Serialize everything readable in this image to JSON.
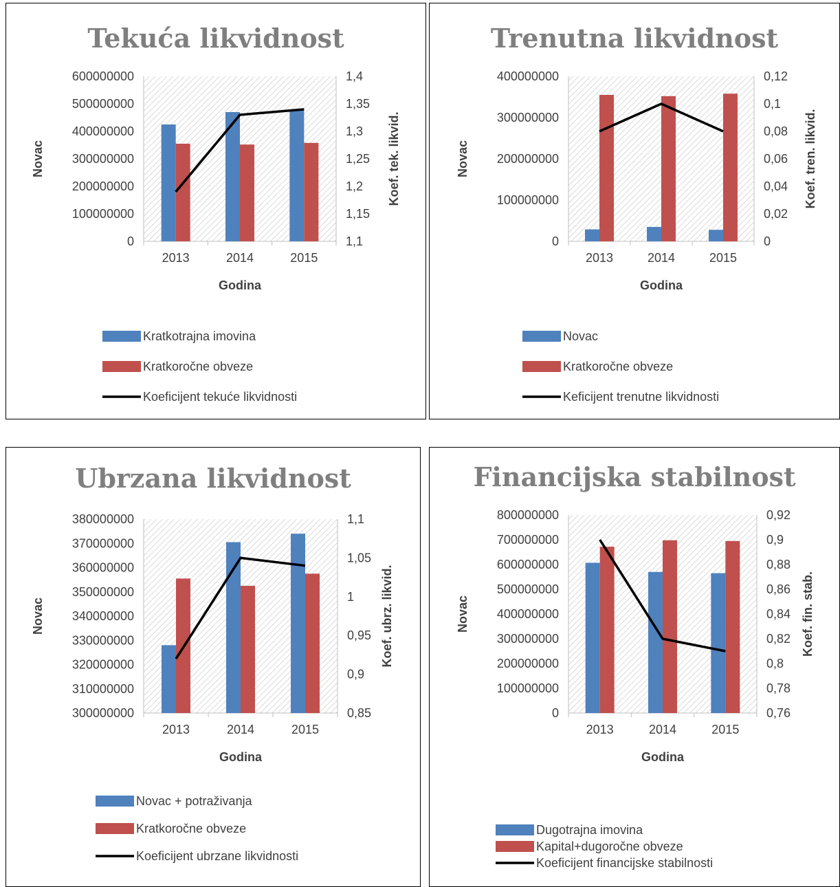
{
  "chart_data": [
    {
      "type": "bar",
      "title": "Tekuća likvidnost",
      "xlabel": "Godina",
      "ylabel": "Novac",
      "y2label": "Koef. tek. likvid.",
      "categories": [
        "2013",
        "2014",
        "2015"
      ],
      "ylim": [
        0,
        600000000
      ],
      "yticks": [
        "0",
        "100000000",
        "200000000",
        "300000000",
        "400000000",
        "500000000",
        "600000000"
      ],
      "y2lim": [
        1.1,
        1.4
      ],
      "y2ticks": [
        "1,1",
        "1,15",
        "1,2",
        "1,25",
        "1,3",
        "1,35",
        "1,4"
      ],
      "series": [
        {
          "name": "Kratkotrajna imovina",
          "kind": "bar",
          "color": "#4f81bd",
          "values": [
            425000000,
            470000000,
            480000000
          ]
        },
        {
          "name": "Kratkoročne obveze",
          "kind": "bar",
          "color": "#c0504d",
          "values": [
            355000000,
            352000000,
            358000000
          ]
        },
        {
          "name": "Koeficijent tekuće likvidnosti",
          "kind": "line",
          "axis": "right",
          "color": "#000000",
          "values": [
            1.19,
            1.33,
            1.34
          ]
        }
      ],
      "legend_position": "bottom",
      "grid": "hatched-plot-area"
    },
    {
      "type": "bar",
      "title": "Trenutna likvidnost",
      "xlabel": "Godina",
      "ylabel": "Novac",
      "y2label": "Koef. tren. likvid.",
      "categories": [
        "2013",
        "2014",
        "2015"
      ],
      "ylim": [
        0,
        400000000
      ],
      "yticks": [
        "0",
        "100000000",
        "200000000",
        "300000000",
        "400000000"
      ],
      "y2lim": [
        0,
        0.12
      ],
      "y2ticks": [
        "0",
        "0,02",
        "0,04",
        "0,06",
        "0,08",
        "0,1",
        "0,12"
      ],
      "series": [
        {
          "name": "Novac",
          "kind": "bar",
          "color": "#4f81bd",
          "values": [
            29000000,
            35000000,
            28000000
          ]
        },
        {
          "name": "Kratkoročne obveze",
          "kind": "bar",
          "color": "#c0504d",
          "values": [
            355000000,
            352000000,
            358000000
          ]
        },
        {
          "name": "Keficijent trenutne likvidnosti",
          "kind": "line",
          "axis": "right",
          "color": "#000000",
          "values": [
            0.08,
            0.1,
            0.08
          ]
        }
      ],
      "legend_position": "bottom",
      "grid": "hatched-plot-area"
    },
    {
      "type": "bar",
      "title": "Ubrzana likvidnost",
      "xlabel": "Godina",
      "ylabel": "Novac",
      "y2label": "Koef. ubrz. likvid.",
      "categories": [
        "2013",
        "2014",
        "2015"
      ],
      "ylim": [
        300000000,
        380000000
      ],
      "yticks": [
        "300000000",
        "310000000",
        "320000000",
        "330000000",
        "340000000",
        "350000000",
        "360000000",
        "370000000",
        "380000000"
      ],
      "y2lim": [
        0.85,
        1.1
      ],
      "y2ticks": [
        "0,85",
        "0,9",
        "0,95",
        "1",
        "1,05",
        "1,1"
      ],
      "series": [
        {
          "name": "Novac + potraživanja",
          "kind": "bar",
          "color": "#4f81bd",
          "values": [
            328000000,
            370500000,
            374000000
          ]
        },
        {
          "name": "Kratkoročne obveze",
          "kind": "bar",
          "color": "#c0504d",
          "values": [
            355500000,
            352500000,
            357500000
          ]
        },
        {
          "name": "Koeficijent ubrzane likvidnosti",
          "kind": "line",
          "axis": "right",
          "color": "#000000",
          "values": [
            0.92,
            1.05,
            1.04
          ]
        }
      ],
      "legend_position": "bottom",
      "grid": "hatched-plot-area"
    },
    {
      "type": "bar",
      "title": "Financijska stabilnost",
      "xlabel": "Godina",
      "ylabel": "Novac",
      "y2label": "Koef. fin. stab.",
      "categories": [
        "2013",
        "2014",
        "2015"
      ],
      "ylim": [
        0,
        800000000
      ],
      "yticks": [
        "0",
        "100000000",
        "200000000",
        "300000000",
        "400000000",
        "500000000",
        "600000000",
        "700000000",
        "800000000"
      ],
      "y2lim": [
        0.76,
        0.92
      ],
      "y2ticks": [
        "0,76",
        "0,78",
        "0,8",
        "0,82",
        "0,84",
        "0,86",
        "0,88",
        "0,9",
        "0,92"
      ],
      "series": [
        {
          "name": "Dugotrajna imovina",
          "kind": "bar",
          "color": "#4f81bd",
          "values": [
            607000000,
            570000000,
            565000000
          ]
        },
        {
          "name": "Kapital+dugoročne obveze",
          "kind": "bar",
          "color": "#c0504d",
          "values": [
            672000000,
            698000000,
            695000000
          ]
        },
        {
          "name": "Koeficijent financijske stabilnosti",
          "kind": "line",
          "axis": "right",
          "color": "#000000",
          "values": [
            0.9,
            0.82,
            0.81
          ]
        }
      ],
      "legend_position": "bottom",
      "grid": "hatched-plot-area"
    }
  ]
}
